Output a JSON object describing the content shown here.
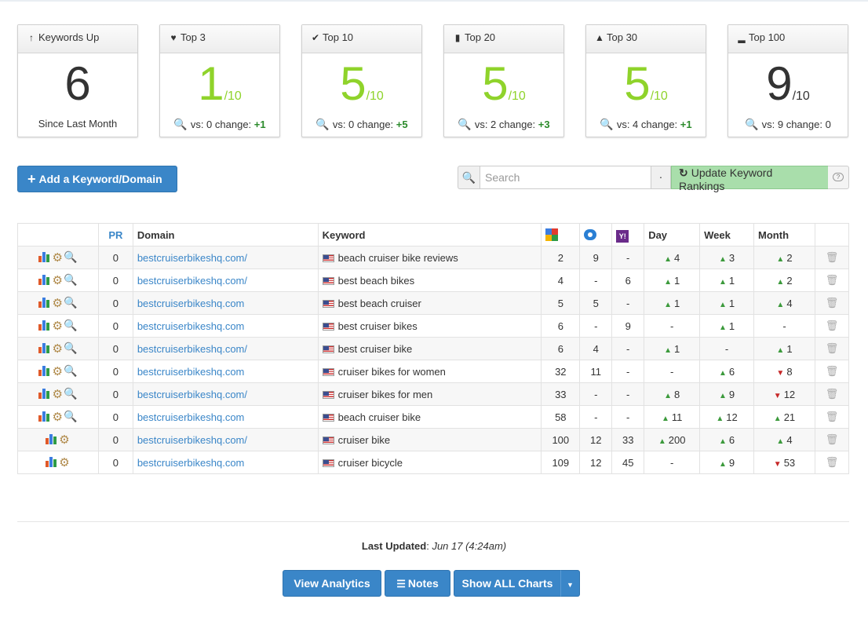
{
  "cards": [
    {
      "title": "Keywords Up",
      "icon": "arrow-up-icon",
      "value": "6",
      "denom": "",
      "foot_text": "Since Last Month",
      "vs": "",
      "change": ""
    },
    {
      "title": "Top 3",
      "icon": "heart-icon",
      "value": "1",
      "denom": "/10",
      "foot_text": "",
      "vs": "vs: 0 change:",
      "change": "+1"
    },
    {
      "title": "Top 10",
      "icon": "check-icon",
      "value": "5",
      "denom": "/10",
      "foot_text": "",
      "vs": "vs: 0 change:",
      "change": "+5"
    },
    {
      "title": "Top 20",
      "icon": "bookmark-icon",
      "value": "5",
      "denom": "/10",
      "foot_text": "",
      "vs": "vs: 2 change:",
      "change": "+3"
    },
    {
      "title": "Top 30",
      "icon": "road-icon",
      "value": "5",
      "denom": "/10",
      "foot_text": "",
      "vs": "vs: 4 change:",
      "change": "+1"
    },
    {
      "title": "Top 100",
      "icon": "signal-icon",
      "value": "9",
      "denom": "/10",
      "foot_text": "",
      "vs": "vs: 9 change: 0",
      "change": ""
    }
  ],
  "toolbar": {
    "add_label": "Add a Keyword/Domain",
    "search_placeholder": "Search",
    "dot": "·",
    "update_label": "Update Keyword Rankings"
  },
  "table": {
    "headers": {
      "pr": "PR",
      "domain": "Domain",
      "keyword": "Keyword",
      "day": "Day",
      "week": "Week",
      "month": "Month"
    },
    "rows": [
      {
        "pr": "0",
        "domain": "bestcruiserbikeshq.com/",
        "keyword": "beach cruiser bike reviews",
        "g": "2",
        "b": "9",
        "y": "-",
        "day": "4",
        "day_dir": "up",
        "week": "3",
        "week_dir": "up",
        "month": "2",
        "month_dir": "up",
        "search": true
      },
      {
        "pr": "0",
        "domain": "bestcruiserbikeshq.com/",
        "keyword": "best beach bikes",
        "g": "4",
        "b": "-",
        "y": "6",
        "day": "1",
        "day_dir": "up",
        "week": "1",
        "week_dir": "up",
        "month": "2",
        "month_dir": "up",
        "search": true
      },
      {
        "pr": "0",
        "domain": "bestcruiserbikeshq.com",
        "keyword": "best beach cruiser",
        "g": "5",
        "b": "5",
        "y": "-",
        "day": "1",
        "day_dir": "up",
        "week": "1",
        "week_dir": "up",
        "month": "4",
        "month_dir": "up",
        "search": true
      },
      {
        "pr": "0",
        "domain": "bestcruiserbikeshq.com",
        "keyword": "best cruiser bikes",
        "g": "6",
        "b": "-",
        "y": "9",
        "day": "-",
        "day_dir": "none",
        "week": "1",
        "week_dir": "up",
        "month": "-",
        "month_dir": "none",
        "search": true
      },
      {
        "pr": "0",
        "domain": "bestcruiserbikeshq.com/",
        "keyword": "best cruiser bike",
        "g": "6",
        "b": "4",
        "y": "-",
        "day": "1",
        "day_dir": "up",
        "week": "-",
        "week_dir": "none",
        "month": "1",
        "month_dir": "up",
        "search": true
      },
      {
        "pr": "0",
        "domain": "bestcruiserbikeshq.com",
        "keyword": "cruiser bikes for women",
        "g": "32",
        "b": "11",
        "y": "-",
        "day": "-",
        "day_dir": "none",
        "week": "6",
        "week_dir": "up",
        "month": "8",
        "month_dir": "down",
        "search": true
      },
      {
        "pr": "0",
        "domain": "bestcruiserbikeshq.com/",
        "keyword": "cruiser bikes for men",
        "g": "33",
        "b": "-",
        "y": "-",
        "day": "8",
        "day_dir": "up",
        "week": "9",
        "week_dir": "up",
        "month": "12",
        "month_dir": "down",
        "search": true
      },
      {
        "pr": "0",
        "domain": "bestcruiserbikeshq.com",
        "keyword": "beach cruiser bike",
        "g": "58",
        "b": "-",
        "y": "-",
        "day": "11",
        "day_dir": "up",
        "week": "12",
        "week_dir": "up",
        "month": "21",
        "month_dir": "up",
        "search": true
      },
      {
        "pr": "0",
        "domain": "bestcruiserbikeshq.com/",
        "keyword": "cruiser bike",
        "g": "100",
        "b": "12",
        "y": "33",
        "day": "200",
        "day_dir": "up",
        "week": "6",
        "week_dir": "up",
        "month": "4",
        "month_dir": "up",
        "search": false
      },
      {
        "pr": "0",
        "domain": "bestcruiserbikeshq.com",
        "keyword": "cruiser bicycle",
        "g": "109",
        "b": "12",
        "y": "45",
        "day": "-",
        "day_dir": "none",
        "week": "9",
        "week_dir": "up",
        "month": "53",
        "month_dir": "down",
        "search": false
      }
    ]
  },
  "footer": {
    "last_updated_label": "Last Updated",
    "last_updated_value": "Jun 17 (4:24am)",
    "view_analytics": "View Analytics",
    "notes": "Notes",
    "show_all_charts": "Show ALL Charts"
  },
  "colors": {
    "primary": "#3a86c8",
    "green": "#8fd32b",
    "update_bg": "#a9deab",
    "up": "#3c9a3c",
    "down": "#c62828"
  }
}
